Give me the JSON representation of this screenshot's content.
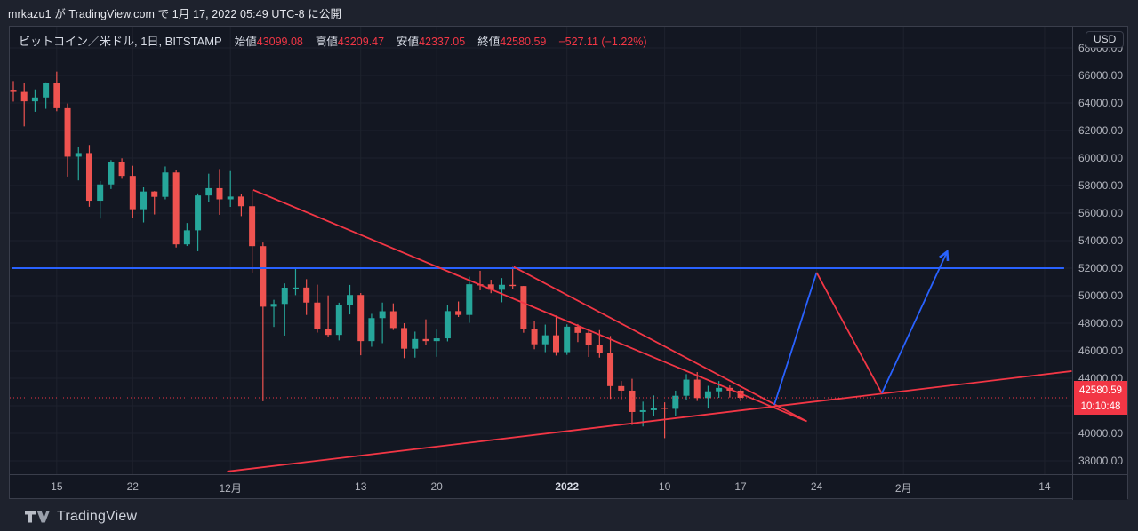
{
  "page": {
    "publish_text": "mrkazu1 が TradingView.com で 1月 17, 2022 05:49 UTC-8 に公開",
    "footer_brand": "TradingView"
  },
  "legend": {
    "title": "ビットコイン／米ドル, 1日, BITSTAMP",
    "ohlc": [
      {
        "label": "始値",
        "value": "43099.08"
      },
      {
        "label": "高値",
        "value": "43209.47"
      },
      {
        "label": "安値",
        "value": "42337.05"
      },
      {
        "label": "終値",
        "value": "42580.59"
      }
    ],
    "change": "−527.11 (−1.22%)"
  },
  "price_axis": {
    "currency": "USD",
    "ticks": [
      "68000.00",
      "66000.00",
      "64000.00",
      "62000.00",
      "60000.00",
      "58000.00",
      "56000.00",
      "54000.00",
      "52000.00",
      "50000.00",
      "48000.00",
      "46000.00",
      "44000.00",
      "42000.00",
      "40000.00",
      "38000.00"
    ],
    "last_price_label": {
      "price": "42580.59",
      "countdown": "10:10:48"
    }
  },
  "time_axis": {
    "ticks": [
      {
        "label": "15",
        "bar": 4,
        "bold": false
      },
      {
        "label": "22",
        "bar": 11,
        "bold": false
      },
      {
        "label": "12月",
        "bar": 20,
        "bold": false
      },
      {
        "label": "13",
        "bar": 32,
        "bold": false
      },
      {
        "label": "20",
        "bar": 39,
        "bold": false
      },
      {
        "label": "2022",
        "bar": 51,
        "bold": true
      },
      {
        "label": "10",
        "bar": 60,
        "bold": false
      },
      {
        "label": "17",
        "bar": 67,
        "bold": false
      },
      {
        "label": "24",
        "bar": 74,
        "bold": false
      },
      {
        "label": "2月",
        "bar": 82,
        "bold": false
      },
      {
        "label": "14",
        "bar": 95,
        "bold": false
      }
    ]
  },
  "colors": {
    "up": "#26a69a",
    "down": "#ef5350",
    "trend_red": "#f23645",
    "trend_blue": "#2962ff",
    "grid": "#1e222d",
    "widget_bg": "#131722",
    "page_bg": "#1e222d",
    "axis_text": "#b2b5be",
    "label_bg": "#f23645"
  },
  "chart_data": {
    "type": "candlestick",
    "symbol": "ビットコイン／米ドル",
    "exchange": "BITSTAMP",
    "interval": "1日",
    "y_axis": {
      "min": 38000,
      "max": 68000,
      "step": 2000
    },
    "candles": [
      [
        "2021-11-11",
        64962,
        65590,
        64100,
        64800
      ],
      [
        "2021-11-12",
        64800,
        65450,
        62300,
        64120
      ],
      [
        "2021-11-13",
        64120,
        64985,
        63360,
        64400
      ],
      [
        "2021-11-14",
        64400,
        65495,
        63576,
        65470
      ],
      [
        "2021-11-15",
        65470,
        66280,
        63400,
        63620
      ],
      [
        "2021-11-16",
        63620,
        63960,
        58650,
        60100
      ],
      [
        "2021-11-17",
        60100,
        60840,
        58373,
        60360
      ],
      [
        "2021-11-18",
        60360,
        60950,
        56460,
        56900
      ],
      [
        "2021-11-19",
        56900,
        58320,
        55600,
        58080
      ],
      [
        "2021-11-20",
        58080,
        59850,
        57750,
        59720
      ],
      [
        "2021-11-21",
        59720,
        59980,
        58490,
        58700
      ],
      [
        "2021-11-22",
        58700,
        59440,
        55620,
        56280
      ],
      [
        "2021-11-23",
        56280,
        57870,
        55320,
        57570
      ],
      [
        "2021-11-24",
        57570,
        57600,
        55900,
        57180
      ],
      [
        "2021-11-25",
        57180,
        59390,
        57000,
        58950
      ],
      [
        "2021-11-26",
        58950,
        59150,
        53500,
        53730
      ],
      [
        "2021-11-27",
        53730,
        55280,
        53610,
        54750
      ],
      [
        "2021-11-28",
        54750,
        57430,
        53230,
        57280
      ],
      [
        "2021-11-29",
        57280,
        58860,
        56780,
        57810
      ],
      [
        "2021-11-30",
        57810,
        59200,
        55875,
        57000
      ],
      [
        "2021-12-01",
        57000,
        59050,
        56450,
        57200
      ],
      [
        "2021-12-02",
        57200,
        57375,
        55780,
        56500
      ],
      [
        "2021-12-03",
        56500,
        57600,
        51680,
        53600
      ],
      [
        "2021-12-04",
        53600,
        53860,
        42333,
        49200
      ],
      [
        "2021-12-05",
        49200,
        49700,
        47730,
        49400
      ],
      [
        "2021-12-06",
        49400,
        50890,
        47100,
        50580
      ],
      [
        "2021-12-07",
        50580,
        51940,
        50040,
        50590
      ],
      [
        "2021-12-08",
        50590,
        51200,
        48600,
        49500
      ],
      [
        "2021-12-09",
        49500,
        50800,
        47320,
        47550
      ],
      [
        "2021-12-10",
        47550,
        50020,
        47000,
        47150
      ],
      [
        "2021-12-11",
        47150,
        49490,
        46750,
        49340
      ],
      [
        "2021-12-12",
        49340,
        50780,
        48640,
        50050
      ],
      [
        "2021-12-13",
        50050,
        50190,
        45670,
        46700
      ],
      [
        "2021-12-14",
        46700,
        48680,
        46290,
        48370
      ],
      [
        "2021-12-15",
        48370,
        49500,
        46550,
        48870
      ],
      [
        "2021-12-16",
        48870,
        49440,
        47510,
        47650
      ],
      [
        "2021-12-17",
        47650,
        48000,
        45460,
        46150
      ],
      [
        "2021-12-18",
        46150,
        47390,
        45500,
        46850
      ],
      [
        "2021-12-19",
        46850,
        48280,
        46420,
        46700
      ],
      [
        "2021-12-20",
        46700,
        47540,
        45560,
        46900
      ],
      [
        "2021-12-21",
        46900,
        49330,
        46680,
        48880
      ],
      [
        "2021-12-22",
        48880,
        49580,
        48450,
        48600
      ],
      [
        "2021-12-23",
        48600,
        51380,
        48030,
        50830
      ],
      [
        "2021-12-24",
        50830,
        51810,
        50390,
        50820
      ],
      [
        "2021-12-25",
        50820,
        51160,
        50180,
        50430
      ],
      [
        "2021-12-26",
        50430,
        51280,
        49520,
        50790
      ],
      [
        "2021-12-27",
        50790,
        52090,
        50450,
        50700
      ],
      [
        "2021-12-28",
        50700,
        50710,
        47310,
        47550
      ],
      [
        "2021-12-29",
        47550,
        48140,
        46110,
        46470
      ],
      [
        "2021-12-30",
        46470,
        47900,
        45900,
        47120
      ],
      [
        "2021-12-31",
        47120,
        48560,
        45650,
        45900
      ],
      [
        "2022-01-01",
        45900,
        47920,
        45700,
        47750
      ],
      [
        "2022-01-02",
        47750,
        47940,
        46630,
        47300
      ],
      [
        "2022-01-03",
        47300,
        47560,
        45550,
        46440
      ],
      [
        "2022-01-04",
        46440,
        47500,
        45500,
        45850
      ],
      [
        "2022-01-05",
        45850,
        47070,
        42500,
        43430
      ],
      [
        "2022-01-06",
        43430,
        43800,
        42420,
        43100
      ],
      [
        "2022-01-07",
        43100,
        43960,
        40610,
        41550
      ],
      [
        "2022-01-08",
        41550,
        42300,
        40500,
        41680
      ],
      [
        "2022-01-09",
        41680,
        42750,
        41270,
        41860
      ],
      [
        "2022-01-10",
        41860,
        42250,
        39650,
        41780
      ],
      [
        "2022-01-11",
        41780,
        43100,
        41290,
        42730
      ],
      [
        "2022-01-12",
        42730,
        44300,
        42450,
        43900
      ],
      [
        "2022-01-13",
        43900,
        44450,
        42350,
        42560
      ],
      [
        "2022-01-14",
        42560,
        43450,
        41800,
        43050
      ],
      [
        "2022-01-15",
        43050,
        43800,
        42580,
        43300
      ],
      [
        "2022-01-16",
        43300,
        43480,
        42600,
        43100
      ],
      [
        "2022-01-17",
        43099.08,
        43209.47,
        42337.05,
        42580.59
      ]
    ],
    "overlays": {
      "blue_resistance": {
        "type": "horizontal_line",
        "price": 52000,
        "from_bar": -0.1,
        "to_bar": 96.8
      },
      "last_price_line": {
        "type": "dotted_horizontal",
        "price": 42580.59
      },
      "trendlines": [
        {
          "name": "descending-trendline-1",
          "from": {
            "bar": 22.1,
            "price": 57680
          },
          "to": {
            "bar": 73.0,
            "price": 40900
          }
        },
        {
          "name": "descending-trendline-2",
          "from": {
            "bar": 46.1,
            "price": 52090
          },
          "to": {
            "bar": 73.1,
            "price": 40870
          }
        },
        {
          "name": "ascending-support-line",
          "from": {
            "bar": 19.7,
            "price": 37230
          },
          "to": {
            "bar": 97.5,
            "price": 44520
          }
        }
      ],
      "projection_path": {
        "arrow_end": true,
        "points": [
          {
            "bar": 70.1,
            "price": 42070,
            "seg": "blue"
          },
          {
            "bar": 74.0,
            "price": 51680,
            "seg": "red"
          },
          {
            "bar": 80.0,
            "price": 42900,
            "seg": "blue"
          },
          {
            "bar": 86.0,
            "price": 53160
          }
        ]
      }
    }
  }
}
